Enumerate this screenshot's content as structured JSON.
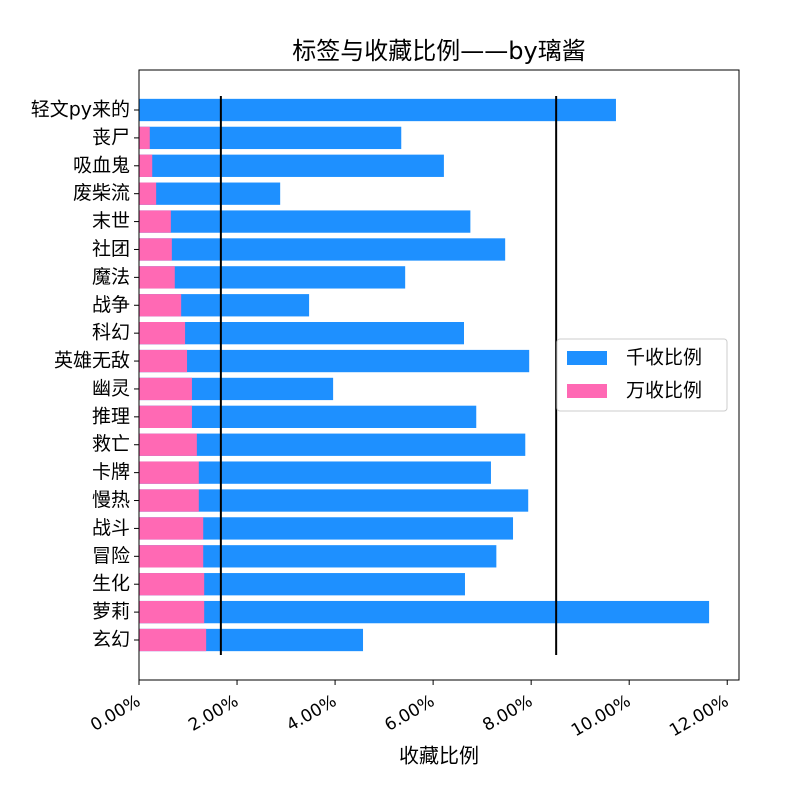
{
  "chart_data": {
    "type": "barh",
    "title": "标签与收藏比例——by璃酱",
    "x_label": "收藏比例",
    "categories": [
      "轻文py来的",
      "丧尸",
      "吸血鬼",
      "废柴流",
      "末世",
      "社团",
      "魔法",
      "战争",
      "科幻",
      "英雄无敌",
      "幽灵",
      "推理",
      "救亡",
      "卡牌",
      "慢热",
      "战斗",
      "冒险",
      "生化",
      "萝莉",
      "玄幻"
    ],
    "series": [
      {
        "name": "千收比例",
        "color": "#1e90ff",
        "values": [
          9.73,
          5.35,
          6.22,
          2.88,
          6.76,
          7.47,
          5.43,
          3.47,
          6.63,
          7.96,
          3.96,
          6.88,
          7.88,
          7.18,
          7.94,
          7.63,
          7.29,
          6.65,
          11.63,
          4.57
        ]
      },
      {
        "name": "万收比例",
        "color": "#ff69b4",
        "values": [
          0,
          0.22,
          0.27,
          0.35,
          0.65,
          0.67,
          0.73,
          0.86,
          0.94,
          0.98,
          1.08,
          1.08,
          1.18,
          1.22,
          1.22,
          1.31,
          1.31,
          1.33,
          1.33,
          1.37
        ]
      }
    ],
    "vlines": [
      1.67,
      8.51
    ],
    "xlim": [
      0,
      12.24
    ],
    "xticks": [
      {
        "value": 0,
        "label": "0.00%"
      },
      {
        "value": 2,
        "label": "2.00%"
      },
      {
        "value": 4,
        "label": "4.00%"
      },
      {
        "value": 6,
        "label": "6.00%"
      },
      {
        "value": 8,
        "label": "8.00%"
      },
      {
        "value": 10,
        "label": "10.00%"
      },
      {
        "value": 12,
        "label": "12.00%"
      }
    ],
    "legend": "right"
  }
}
